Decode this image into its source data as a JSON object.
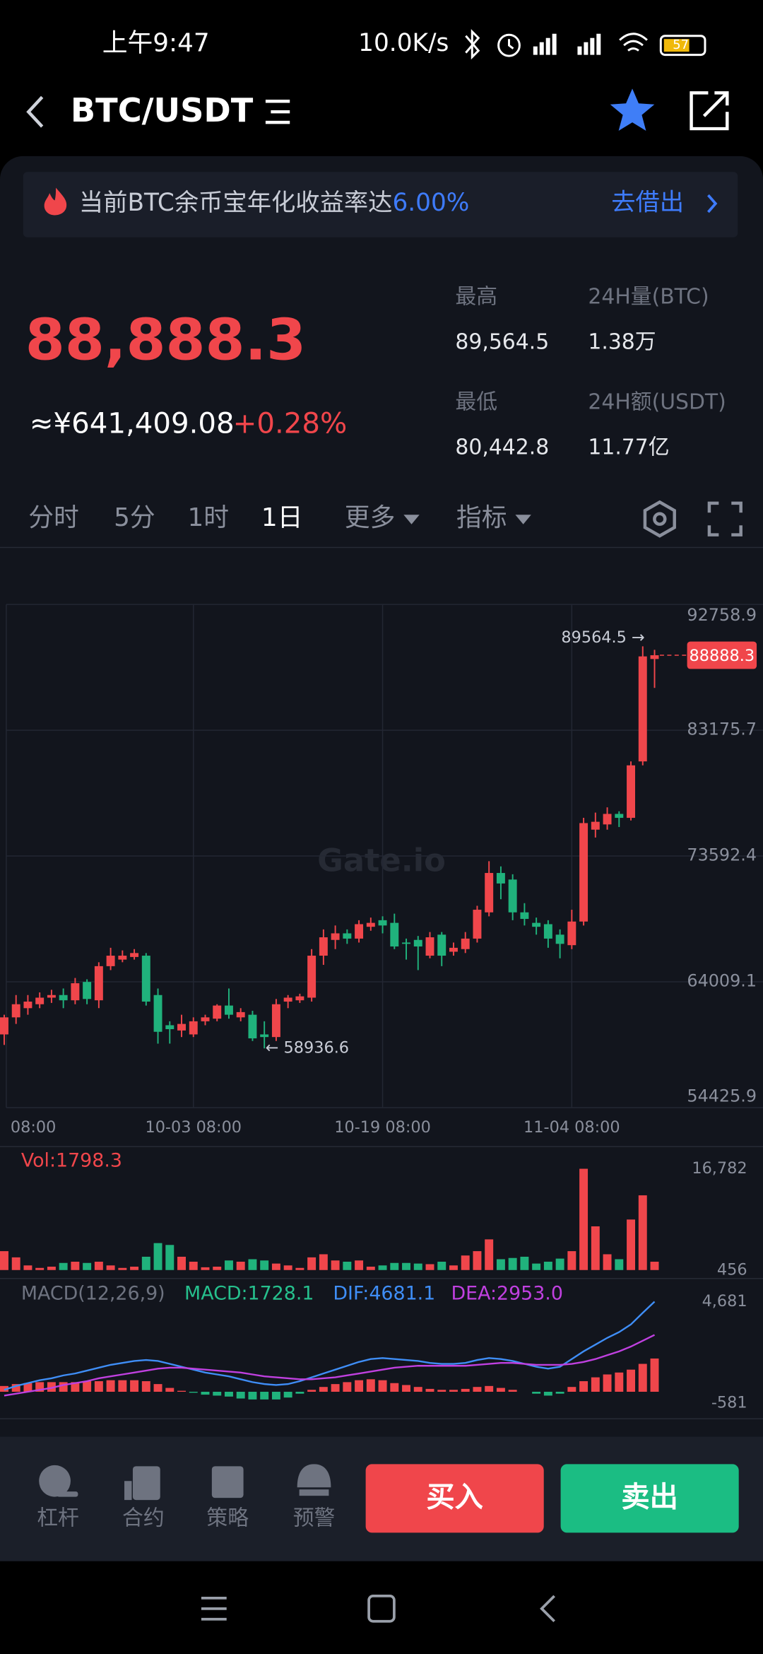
{
  "status_bar": {
    "time": "上午9:47",
    "speed": "10.0K/s",
    "battery": "57"
  },
  "header": {
    "pair": "BTC/USDT"
  },
  "banner": {
    "text": "当前BTC余币宝年化收益率达",
    "rate": "6.00%",
    "action": "去借出"
  },
  "ticker": {
    "price": "88,888.3",
    "cny": "≈¥641,409.08",
    "change": "+0.28%",
    "stats": [
      {
        "label": "最高",
        "value": "89,564.5"
      },
      {
        "label": "24H量(BTC)",
        "value": "1.38万"
      },
      {
        "label": "最低",
        "value": "80,442.8"
      },
      {
        "label": "24H额(USDT)",
        "value": "11.77亿"
      }
    ]
  },
  "tabs": [
    "分时",
    "5分",
    "1时",
    "1日",
    "更多",
    "指标"
  ],
  "active_tab": "1日",
  "chart_data": [
    {
      "type": "candlestick",
      "categories": [
        "08:00",
        null,
        null,
        null,
        null,
        null,
        null,
        null,
        null,
        null,
        null,
        null,
        null,
        null,
        null,
        null,
        "10-03 08:00",
        null,
        null,
        null,
        null,
        null,
        null,
        null,
        null,
        null,
        null,
        null,
        null,
        null,
        null,
        null,
        "10-19 08:00",
        null,
        null,
        null,
        null,
        null,
        null,
        null,
        null,
        null,
        null,
        null,
        null,
        null,
        null,
        null,
        "11-04 08:00",
        null,
        null,
        null,
        null,
        null,
        null,
        null
      ],
      "open": [
        60000,
        61300,
        62000,
        62300,
        62800,
        63000,
        62600,
        64000,
        62600,
        65200,
        65700,
        65900,
        66000,
        63000,
        60700,
        60300,
        60000,
        61000,
        61200,
        62200,
        61300,
        61500,
        60000,
        59800,
        62500,
        62600,
        62800,
        66000,
        67200,
        67700,
        67300,
        68200,
        68700,
        68500,
        67000,
        67200,
        66000,
        67600,
        66300,
        66500,
        67300,
        69300,
        72300,
        71800,
        69300,
        68500,
        68400,
        67600,
        66800,
        68600,
        75600,
        76000,
        76800,
        76500,
        80800,
        88600
      ],
      "high": [
        61500,
        63000,
        63000,
        63200,
        63400,
        63500,
        64300,
        64200,
        65500,
        66600,
        66400,
        66500,
        66200,
        63500,
        61000,
        61500,
        61300,
        61500,
        62300,
        63500,
        62000,
        61800,
        61000,
        62700,
        63000,
        63100,
        66500,
        68000,
        68300,
        68000,
        68700,
        68900,
        69000,
        69200,
        67300,
        67500,
        67800,
        67800,
        67000,
        67800,
        69800,
        73200,
        72800,
        72200,
        70000,
        68900,
        68700,
        68000,
        69500,
        76500,
        76900,
        77300,
        77000,
        80800,
        89564.5,
        89300
      ],
      "low": [
        59200,
        60800,
        61500,
        62000,
        62400,
        62000,
        62300,
        62300,
        62000,
        64900,
        65500,
        65700,
        62200,
        59300,
        59300,
        59800,
        59800,
        60700,
        61000,
        61200,
        61000,
        59500,
        58936.6,
        59500,
        62000,
        62400,
        62500,
        65300,
        66500,
        66900,
        67000,
        67900,
        67700,
        66500,
        65700,
        64900,
        65800,
        65200,
        66000,
        66200,
        67000,
        69000,
        70300,
        68700,
        68300,
        67600,
        66600,
        65800,
        66500,
        68300,
        75000,
        75600,
        75800,
        76300,
        80500,
        86400
      ],
      "close": [
        61300,
        62300,
        62500,
        62800,
        63000,
        62600,
        63900,
        62700,
        65200,
        66000,
        66000,
        66200,
        62500,
        60200,
        60400,
        60800,
        61000,
        61300,
        62200,
        61500,
        61700,
        59700,
        59800,
        62300,
        62800,
        62900,
        66000,
        67400,
        67700,
        67300,
        68400,
        68500,
        68300,
        66700,
        66900,
        66700,
        67400,
        66000,
        66600,
        67300,
        69500,
        72300,
        71500,
        69300,
        68800,
        68200,
        67300,
        66900,
        68600,
        76100,
        76200,
        76800,
        76500,
        80500,
        88800,
        88888.3
      ],
      "up_color": "#f0464b",
      "down_color": "#20b27c",
      "ylim": [
        54425.9,
        92758.9
      ],
      "yticks": [
        92758.9,
        83175.7,
        73592.4,
        64009.1,
        54425.9
      ],
      "grid": true,
      "watermark": "Gate.io",
      "high_marker": {
        "value": 89564.5,
        "label": "89564.5 →"
      },
      "low_marker": {
        "value": 58936.6,
        "label": "← 58936.6"
      },
      "last_price": 88888.3
    },
    {
      "type": "bar",
      "title": "Vol:1798.3",
      "values": [
        3500,
        2500,
        1200,
        800,
        1000,
        1600,
        1800,
        1600,
        1800,
        1200,
        800,
        1000,
        2600,
        4800,
        4500,
        2600,
        1800,
        900,
        1000,
        2000,
        1800,
        2200,
        2000,
        1500,
        1200,
        800,
        2500,
        3000,
        2000,
        1800,
        2000,
        1000,
        1200,
        1600,
        1600,
        1500,
        1400,
        1800,
        1200,
        2800,
        3500,
        5400,
        2200,
        2400,
        2600,
        1500,
        1800,
        2300,
        3500,
        16782,
        7500,
        3000,
        2200,
        8600,
        12500,
        1798.3
      ],
      "ylim": [
        456,
        16782
      ],
      "yticks": [
        {
          "value": 16782,
          "label": "16,782"
        },
        456
      ]
    },
    {
      "type": "line",
      "title": "MACD(12,26,9)",
      "ylim": [
        -581,
        4681
      ],
      "yticks": [
        {
          "value": 4681,
          "label": "4,681"
        },
        -581
      ],
      "series": [
        {
          "label": "MACD:1728.1",
          "color": "#26c08d",
          "kind": "histogram",
          "up_color": "#f0464b",
          "down_color": "#20b27c",
          "values": [
            300,
            400,
            450,
            500,
            500,
            500,
            500,
            550,
            550,
            600,
            600,
            600,
            550,
            400,
            200,
            50,
            -50,
            -150,
            -200,
            -250,
            -350,
            -400,
            -400,
            -400,
            -300,
            -100,
            100,
            250,
            400,
            500,
            600,
            650,
            600,
            450,
            350,
            250,
            150,
            100,
            100,
            150,
            250,
            300,
            200,
            100,
            0,
            -100,
            -200,
            -100,
            250,
            550,
            750,
            900,
            1000,
            1150,
            1450,
            1728.1
          ]
        },
        {
          "label": "DIF:4681.1",
          "color": "#3f8ef7",
          "kind": "line",
          "values": [
            100,
            300,
            450,
            600,
            700,
            850,
            950,
            1100,
            1250,
            1400,
            1500,
            1600,
            1650,
            1600,
            1450,
            1300,
            1150,
            1000,
            900,
            800,
            650,
            500,
            400,
            350,
            400,
            550,
            750,
            950,
            1150,
            1350,
            1550,
            1700,
            1750,
            1700,
            1650,
            1600,
            1500,
            1450,
            1450,
            1500,
            1650,
            1750,
            1700,
            1600,
            1450,
            1300,
            1200,
            1300,
            1700,
            2100,
            2450,
            2800,
            3100,
            3500,
            4100,
            4681.1
          ]
        },
        {
          "label": "DEA:2953.0",
          "color": "#c040e0",
          "kind": "line",
          "values": [
            -200,
            -100,
            0,
            100,
            200,
            350,
            450,
            550,
            700,
            800,
            900,
            1000,
            1100,
            1200,
            1250,
            1250,
            1200,
            1150,
            1100,
            1050,
            1000,
            900,
            800,
            750,
            700,
            650,
            650,
            700,
            750,
            850,
            950,
            1050,
            1150,
            1250,
            1300,
            1350,
            1350,
            1350,
            1350,
            1350,
            1400,
            1450,
            1500,
            1500,
            1450,
            1400,
            1400,
            1400,
            1450,
            1550,
            1700,
            1900,
            2100,
            2350,
            2650,
            2953.0
          ]
        }
      ]
    }
  ],
  "bottom_bar": {
    "tools": [
      "杠杆",
      "合约",
      "策略",
      "预警"
    ],
    "buy": "买入",
    "sell": "卖出"
  }
}
